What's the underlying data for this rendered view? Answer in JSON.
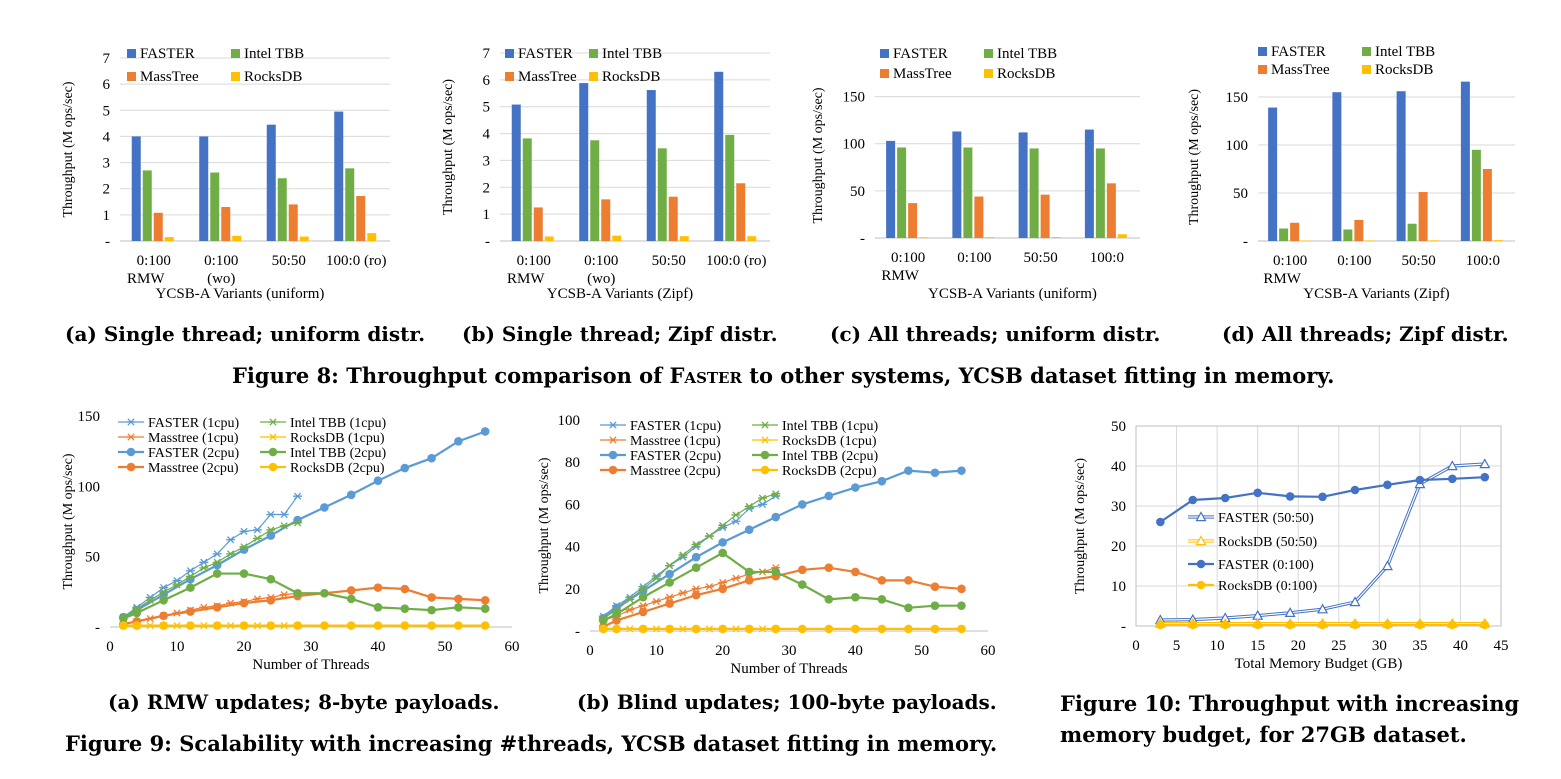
{
  "colors": {
    "faster": "#4472C4",
    "tbb": "#70AD47",
    "masstree": "#ED7D31",
    "rocksdb": "#FFC000",
    "grid": "#d9d9d9"
  },
  "fig8": {
    "caption_prefix": "Figure 8: Throughput comparison of",
    "caption_name": "Faster",
    "caption_suffix": "to other systems, YCSB dataset fitting in memory.",
    "subcaptions": [
      "(a) Single thread; uniform distr.",
      "(b) Single thread; Zipf distr.",
      "(c) All threads; uniform distr.",
      "(d) All threads; Zipf distr."
    ]
  },
  "fig9": {
    "caption": "Figure 9: Scalability with increasing #threads, YCSB dataset fitting in memory.",
    "subcaptions": [
      "(a) RMW updates; 8-byte payloads.",
      "(b) Blind updates; 100-byte payloads."
    ]
  },
  "fig10": {
    "caption_lines": [
      "Figure 10: Throughput with increasing",
      "memory budget, for 27GB dataset."
    ]
  },
  "chart_data": [
    {
      "type": "bar",
      "title": "",
      "xlabel": "YCSB-A Variants (uniform)",
      "ylabel": "Throughput (M ops/sec)",
      "ylim": [
        0,
        7
      ],
      "yticks": [
        "-",
        "1",
        "2",
        "3",
        "4",
        "5",
        "6",
        "7"
      ],
      "categories": [
        [
          "0:100",
          "RMW"
        ],
        [
          "0:100",
          "(wo)"
        ],
        [
          "50:50"
        ],
        [
          "100:0 (ro)"
        ]
      ],
      "series": [
        {
          "name": "FASTER",
          "values": [
            4.0,
            4.0,
            4.45,
            4.95
          ]
        },
        {
          "name": "Intel TBB",
          "values": [
            2.7,
            2.62,
            2.4,
            2.78
          ]
        },
        {
          "name": "MassTree",
          "values": [
            1.08,
            1.3,
            1.4,
            1.72
          ]
        },
        {
          "name": "RocksDB",
          "values": [
            0.15,
            0.2,
            0.17,
            0.3
          ]
        }
      ],
      "legend": "top"
    },
    {
      "type": "bar",
      "title": "",
      "xlabel": "YCSB-A Variants (Zipf)",
      "ylabel": "Throughput (M ops/sec)",
      "ylim": [
        0,
        7
      ],
      "yticks": [
        "-",
        "1",
        "2",
        "3",
        "4",
        "5",
        "6",
        "7"
      ],
      "categories": [
        [
          "0:100",
          "RMW"
        ],
        [
          "0:100",
          "(wo)"
        ],
        [
          "50:50"
        ],
        [
          "100:0 (ro)"
        ]
      ],
      "series": [
        {
          "name": "FASTER",
          "values": [
            5.08,
            5.88,
            5.62,
            6.3
          ]
        },
        {
          "name": "Intel TBB",
          "values": [
            3.82,
            3.75,
            3.45,
            3.95
          ]
        },
        {
          "name": "MassTree",
          "values": [
            1.25,
            1.55,
            1.65,
            2.15
          ]
        },
        {
          "name": "RocksDB",
          "values": [
            0.17,
            0.2,
            0.18,
            0.18
          ]
        }
      ],
      "legend": "top"
    },
    {
      "type": "bar",
      "title": "",
      "xlabel": "YCSB-A Variants (uniform)",
      "ylabel": "Throughput (M ops/sec)",
      "ylim": [
        0,
        175
      ],
      "yticks": [
        "-",
        "50",
        "100",
        "150"
      ],
      "categories": [
        [
          "0:100",
          "RMW"
        ],
        [
          "0:100"
        ],
        [
          "50:50"
        ],
        [
          "100:0"
        ]
      ],
      "series": [
        {
          "name": "FASTER",
          "values": [
            103,
            113,
            112,
            115
          ]
        },
        {
          "name": "Intel TBB",
          "values": [
            96,
            96,
            95,
            95
          ]
        },
        {
          "name": "MassTree",
          "values": [
            37,
            44,
            46,
            58
          ]
        },
        {
          "name": "RocksDB",
          "values": [
            0.8,
            0.9,
            1.0,
            4
          ]
        }
      ],
      "legend": "top"
    },
    {
      "type": "bar",
      "title": "",
      "xlabel": "YCSB-A Variants (Zipf)",
      "ylabel": "Throughput (M ops/sec)",
      "ylim": [
        0,
        175
      ],
      "yticks": [
        "-",
        "50",
        "100",
        "150"
      ],
      "categories": [
        [
          "0:100",
          "RMW"
        ],
        [
          "0:100"
        ],
        [
          "50:50"
        ],
        [
          "100:0"
        ]
      ],
      "series": [
        {
          "name": "FASTER",
          "values": [
            139,
            155,
            156,
            166
          ]
        },
        {
          "name": "Intel TBB",
          "values": [
            13,
            12,
            18,
            95
          ]
        },
        {
          "name": "MassTree",
          "values": [
            19,
            22,
            51,
            75
          ]
        },
        {
          "name": "RocksDB",
          "values": [
            0.5,
            0.6,
            0.7,
            0.9
          ]
        }
      ],
      "legend": "top"
    },
    {
      "type": "line",
      "title": "",
      "xlabel": "Number of Threads",
      "ylabel": "Throughput (M ops/sec)",
      "xlim": [
        0,
        60
      ],
      "ylim": [
        0,
        150
      ],
      "xticks": [
        "0",
        "10",
        "20",
        "30",
        "40",
        "50",
        "60"
      ],
      "yticks": [
        "-",
        "50",
        "100",
        "150"
      ],
      "series": [
        {
          "name": "FASTER (1cpu)",
          "x": [
            2,
            4,
            6,
            8,
            10,
            12,
            14,
            16,
            18,
            20,
            22,
            24,
            26,
            28
          ],
          "y": [
            7,
            14,
            21,
            28,
            33,
            40,
            46,
            52,
            62,
            68,
            69,
            80,
            80,
            93
          ]
        },
        {
          "name": "Masstree (1cpu)",
          "x": [
            2,
            4,
            6,
            8,
            10,
            12,
            14,
            16,
            18,
            20,
            22,
            24,
            26,
            28
          ],
          "y": [
            2,
            4,
            6,
            8,
            10,
            12,
            14,
            15,
            17,
            18,
            20,
            21,
            23,
            24
          ]
        },
        {
          "name": "FASTER (2cpu)",
          "x": [
            2,
            4,
            8,
            12,
            16,
            20,
            24,
            28,
            32,
            36,
            40,
            44,
            48,
            52,
            56
          ],
          "y": [
            7,
            12,
            23,
            34,
            44,
            55,
            65,
            76,
            85,
            94,
            104,
            113,
            120,
            132,
            139
          ]
        },
        {
          "name": "Masstree (2cpu)",
          "x": [
            2,
            4,
            8,
            12,
            16,
            20,
            24,
            28,
            32,
            36,
            40,
            44,
            48,
            52,
            56
          ],
          "y": [
            2,
            4,
            8,
            11,
            14,
            17,
            19,
            22,
            24,
            26,
            28,
            27,
            21,
            20,
            19
          ]
        },
        {
          "name": "Intel TBB (1cpu)",
          "x": [
            2,
            4,
            6,
            8,
            10,
            12,
            14,
            16,
            18,
            20,
            22,
            24,
            26,
            28
          ],
          "y": [
            7,
            13,
            19,
            25,
            30,
            36,
            42,
            46,
            52,
            57,
            63,
            69,
            72,
            74
          ]
        },
        {
          "name": "RocksDB (1cpu)",
          "x": [
            2,
            4,
            6,
            8,
            10,
            12,
            14,
            16,
            18,
            20,
            22,
            24,
            26,
            28
          ],
          "y": [
            1,
            1,
            1,
            1,
            1,
            1,
            1,
            1,
            1,
            1,
            1,
            1,
            1,
            1
          ]
        },
        {
          "name": "Intel TBB (2cpu)",
          "x": [
            2,
            4,
            8,
            12,
            16,
            20,
            24,
            28,
            32,
            36,
            40,
            44,
            48,
            52,
            56
          ],
          "y": [
            6,
            10,
            19,
            28,
            38,
            38,
            34,
            24,
            24,
            20,
            14,
            13,
            12,
            14,
            13
          ]
        },
        {
          "name": "RocksDB (2cpu)",
          "x": [
            2,
            4,
            8,
            12,
            16,
            20,
            24,
            28,
            32,
            36,
            40,
            44,
            48,
            52,
            56
          ],
          "y": [
            1,
            1,
            1,
            1,
            1,
            1,
            1,
            1,
            1,
            1,
            1,
            1,
            1,
            1,
            1
          ]
        }
      ],
      "legend": "top"
    },
    {
      "type": "line",
      "title": "",
      "xlabel": "Number of Threads",
      "ylabel": "Throughput (M ops/sec)",
      "xlim": [
        0,
        60
      ],
      "ylim": [
        0,
        100
      ],
      "xticks": [
        "0",
        "10",
        "20",
        "30",
        "40",
        "50",
        "60"
      ],
      "yticks": [
        "-",
        "20",
        "40",
        "60",
        "80",
        "100"
      ],
      "series": [
        {
          "name": "FASTER (1cpu)",
          "x": [
            2,
            4,
            6,
            8,
            10,
            12,
            14,
            16,
            18,
            20,
            22,
            24,
            26,
            28
          ],
          "y": [
            7,
            12,
            16,
            21,
            26,
            31,
            35,
            40,
            45,
            49,
            52,
            58,
            60,
            64
          ]
        },
        {
          "name": "Masstree (1cpu)",
          "x": [
            2,
            4,
            6,
            8,
            10,
            12,
            14,
            16,
            18,
            20,
            22,
            24,
            26,
            28
          ],
          "y": [
            5,
            7,
            10,
            12,
            14,
            16,
            18,
            20,
            21,
            23,
            25,
            27,
            28,
            30
          ]
        },
        {
          "name": "FASTER (2cpu)",
          "x": [
            2,
            4,
            8,
            12,
            16,
            20,
            24,
            28,
            32,
            36,
            40,
            44,
            48,
            52,
            56
          ],
          "y": [
            6,
            11,
            19,
            27,
            35,
            42,
            48,
            54,
            60,
            64,
            68,
            71,
            76,
            75,
            76
          ]
        },
        {
          "name": "Masstree (2cpu)",
          "x": [
            2,
            4,
            8,
            12,
            16,
            20,
            24,
            28,
            32,
            36,
            40,
            44,
            48,
            52,
            56
          ],
          "y": [
            2,
            5,
            9,
            13,
            17,
            20,
            24,
            26,
            29,
            30,
            28,
            24,
            24,
            21,
            20
          ]
        },
        {
          "name": "Intel TBB (1cpu)",
          "x": [
            2,
            4,
            6,
            8,
            10,
            12,
            14,
            16,
            18,
            20,
            22,
            24,
            26,
            28
          ],
          "y": [
            6,
            10,
            15,
            20,
            25,
            31,
            36,
            41,
            45,
            50,
            55,
            59,
            63,
            65
          ]
        },
        {
          "name": "RocksDB (1cpu)",
          "x": [
            2,
            4,
            6,
            8,
            10,
            12,
            14,
            16,
            18,
            20,
            22,
            24,
            26,
            28
          ],
          "y": [
            1,
            1,
            1,
            1,
            1,
            1,
            1,
            1,
            1,
            1,
            1,
            1,
            1,
            1
          ]
        },
        {
          "name": "Intel TBB (2cpu)",
          "x": [
            2,
            4,
            8,
            12,
            16,
            20,
            24,
            28,
            32,
            36,
            40,
            44,
            48,
            52,
            56
          ],
          "y": [
            5,
            8,
            16,
            23,
            30,
            37,
            28,
            28,
            22,
            15,
            16,
            15,
            11,
            12,
            12
          ]
        },
        {
          "name": "RocksDB (2cpu)",
          "x": [
            2,
            4,
            8,
            12,
            16,
            20,
            24,
            28,
            32,
            36,
            40,
            44,
            48,
            52,
            56
          ],
          "y": [
            1,
            1,
            1,
            1,
            1,
            1,
            1,
            1,
            1,
            1,
            1,
            1,
            1,
            1,
            1
          ]
        }
      ],
      "legend": "top"
    },
    {
      "type": "line",
      "title": "",
      "xlabel": "Total Memory Budget (GB)",
      "ylabel": "Throughput (M ops/sec)",
      "xlim": [
        0,
        45
      ],
      "ylim": [
        0,
        50
      ],
      "xticks": [
        "0",
        "5",
        "10",
        "15",
        "20",
        "25",
        "30",
        "35",
        "40",
        "45"
      ],
      "yticks": [
        "-",
        "10",
        "20",
        "30",
        "40",
        "50"
      ],
      "series": [
        {
          "name": "FASTER (50:50)",
          "x": [
            3,
            7,
            11,
            15,
            19,
            23,
            27,
            31,
            35,
            39,
            43
          ],
          "y": [
            1.5,
            1.6,
            2.0,
            2.6,
            3.3,
            4.2,
            6.0,
            15.0,
            35.5,
            40.0,
            40.5
          ]
        },
        {
          "name": "RocksDB (50:50)",
          "x": [
            3,
            7,
            11,
            15,
            19,
            23,
            27,
            31,
            35,
            39,
            43
          ],
          "y": [
            0.6,
            0.6,
            0.6,
            0.6,
            0.6,
            0.6,
            0.6,
            0.6,
            0.6,
            0.6,
            0.6
          ]
        },
        {
          "name": "FASTER (0:100)",
          "x": [
            3,
            7,
            11,
            15,
            19,
            23,
            27,
            31,
            35,
            39,
            43
          ],
          "y": [
            26,
            31.5,
            32,
            33.3,
            32.4,
            32.3,
            34,
            35.3,
            36.5,
            36.8,
            37.2
          ]
        },
        {
          "name": "RocksDB (0:100)",
          "x": [
            3,
            7,
            11,
            15,
            19,
            23,
            27,
            31,
            35,
            39,
            43
          ],
          "y": [
            0.3,
            0.3,
            0.3,
            0.3,
            0.3,
            0.3,
            0.3,
            0.3,
            0.3,
            0.3,
            0.3
          ]
        }
      ],
      "legend": "inside-left"
    }
  ]
}
